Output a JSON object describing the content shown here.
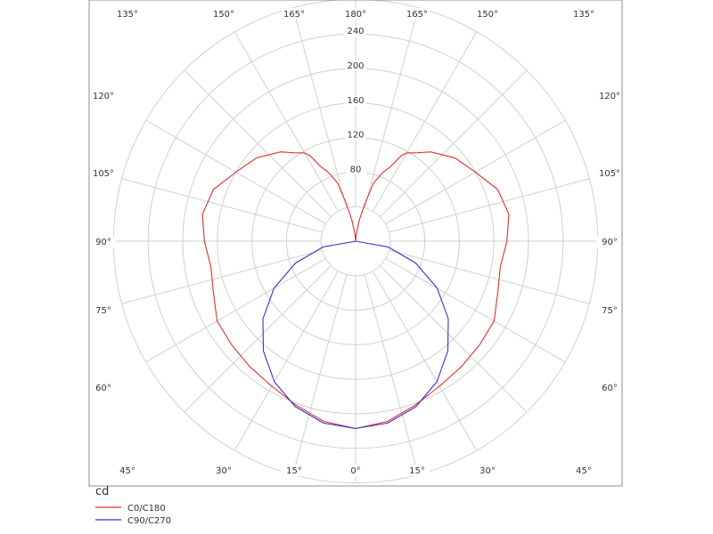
{
  "chart_data": {
    "type": "polar",
    "unit": "cd",
    "radial_ticks": [
      80,
      120,
      160,
      200,
      240
    ],
    "radial_max": 280,
    "angle_ticks": [
      0,
      15,
      30,
      45,
      60,
      75,
      90,
      105,
      120,
      135,
      150,
      165,
      180
    ],
    "angle_labels": {
      "0": "0°",
      "15": "15°",
      "30": "30°",
      "45": "45°",
      "60": "60°",
      "75": "75°",
      "90": "90°",
      "105": "105°",
      "120": "120°",
      "135": "135°",
      "150": "150°",
      "165": "165°",
      "180": "180°"
    },
    "grid": true,
    "legend_position": "bottom-left",
    "series": [
      {
        "name": "C0/C180",
        "color": "#e0302a",
        "angles": [
          0,
          10,
          20,
          30,
          40,
          50,
          60,
          70,
          80,
          90,
          100,
          110,
          120,
          130,
          140,
          145,
          150,
          152,
          155,
          158,
          160,
          163,
          166,
          170,
          175,
          180
        ],
        "values": [
          217,
          212,
          202,
          194,
          190,
          187,
          185,
          175,
          170,
          175,
          180,
          175,
          160,
          150,
          135,
          125,
          118,
          112,
          95,
          87,
          80,
          70,
          45,
          25,
          8,
          0
        ]
      },
      {
        "name": "C90/C270",
        "color": "#3a32c8",
        "angles": [
          0,
          10,
          20,
          30,
          40,
          50,
          60,
          70,
          80,
          90
        ],
        "values": [
          217,
          214,
          204,
          188,
          166,
          140,
          109,
          74,
          38,
          0
        ]
      }
    ]
  }
}
